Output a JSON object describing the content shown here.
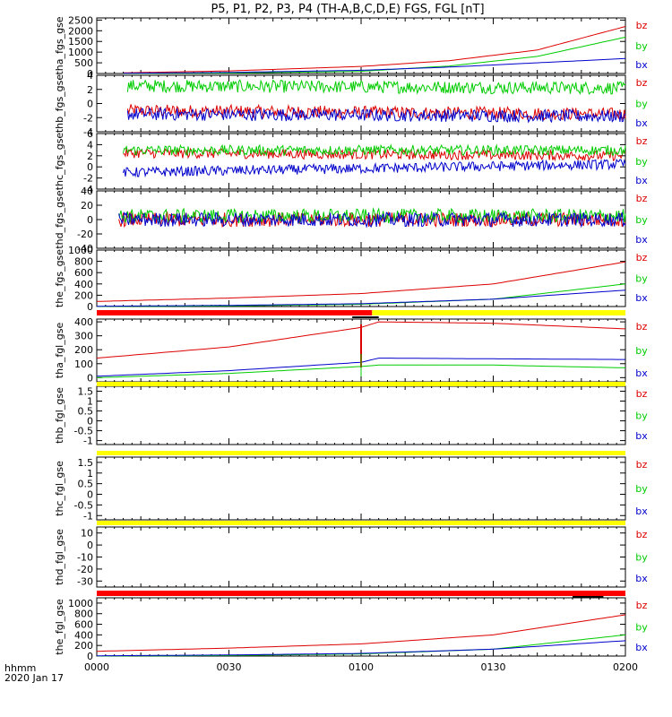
{
  "title": "P5, P1, P2, P3, P4 (TH-A,B,C,D,E) FGS, FGL [nT]",
  "time_axis": {
    "ticks": [
      "0000",
      "0030",
      "0100",
      "0130",
      "0200"
    ],
    "label_line1": "hhmm",
    "label_line2": "2020 Jan 17"
  },
  "colors": {
    "bx": "#0000cc",
    "by": "#00cc00",
    "bz": "#dd0000",
    "red_bar": "#ff0000",
    "yellow_bar": "#ffff00"
  },
  "chart_data": [
    {
      "type": "line",
      "ylabel": "tha_fgs_gse",
      "ylim": [
        0,
        2600
      ],
      "yticks": [
        0,
        500,
        1000,
        1500,
        2000,
        2500
      ],
      "legend": [
        "bz",
        "by",
        "bx"
      ],
      "series": [
        {
          "name": "bz",
          "x": [
            "00:06",
            "00:30",
            "01:00",
            "01:20",
            "01:40",
            "02:00"
          ],
          "values": [
            30,
            120,
            330,
            600,
            1100,
            2200
          ]
        },
        {
          "name": "by",
          "x": [
            "00:06",
            "00:30",
            "01:00",
            "01:20",
            "01:40",
            "02:00"
          ],
          "values": [
            0,
            20,
            100,
            350,
            800,
            1700
          ]
        },
        {
          "name": "bx",
          "x": [
            "00:06",
            "00:30",
            "01:00",
            "01:20",
            "01:40",
            "02:00"
          ],
          "values": [
            10,
            50,
            150,
            300,
            500,
            700
          ]
        }
      ]
    },
    {
      "type": "line",
      "ylabel": "thb_fgs_gse",
      "ylim": [
        -4,
        4
      ],
      "yticks": [
        -4,
        -2,
        0,
        2,
        4
      ],
      "legend": [
        "bz",
        "by",
        "bx"
      ],
      "series": [
        {
          "name": "bz",
          "x": [
            "00:07",
            "02:00"
          ],
          "values": [
            -1,
            -1.5
          ]
        },
        {
          "name": "by",
          "x": [
            "00:07",
            "02:00"
          ],
          "values": [
            2.5,
            2.2
          ]
        },
        {
          "name": "bx",
          "x": [
            "00:07",
            "02:00"
          ],
          "values": [
            -1.5,
            -1.8
          ]
        }
      ]
    },
    {
      "type": "line",
      "ylabel": "thc_fgs_gse",
      "ylim": [
        -4,
        6
      ],
      "yticks": [
        -4,
        -2,
        0,
        2,
        4,
        6
      ],
      "legend": [
        "bz",
        "by",
        "bx"
      ],
      "series": [
        {
          "name": "bz",
          "x": [
            "00:06",
            "02:00"
          ],
          "values": [
            2.5,
            2.0
          ]
        },
        {
          "name": "by",
          "x": [
            "00:06",
            "02:00"
          ],
          "values": [
            3.0,
            3.0
          ]
        },
        {
          "name": "bx",
          "x": [
            "00:06",
            "02:00"
          ],
          "values": [
            -1.0,
            0.5
          ]
        }
      ]
    },
    {
      "type": "line",
      "ylabel": "thd_fgs_gse",
      "ylim": [
        -40,
        40
      ],
      "yticks": [
        -40,
        -20,
        0,
        20,
        40
      ],
      "legend": [
        "bz",
        "by",
        "bx"
      ],
      "series": [
        {
          "name": "bz",
          "x": [
            "00:05",
            "02:00"
          ],
          "values": [
            0,
            0
          ]
        },
        {
          "name": "by",
          "x": [
            "00:05",
            "02:00"
          ],
          "values": [
            5,
            5
          ]
        },
        {
          "name": "bx",
          "x": [
            "00:05",
            "02:00"
          ],
          "values": [
            0,
            0
          ]
        }
      ]
    },
    {
      "type": "line",
      "ylabel": "the_fgs_gse",
      "ylim": [
        0,
        1000
      ],
      "yticks": [
        0,
        200,
        400,
        600,
        800,
        1000
      ],
      "legend": [
        "bz",
        "by",
        "bx"
      ],
      "series": [
        {
          "name": "bz",
          "x": [
            "00:00",
            "00:30",
            "01:00",
            "01:30",
            "02:00"
          ],
          "values": [
            90,
            150,
            230,
            400,
            790
          ]
        },
        {
          "name": "by",
          "x": [
            "00:00",
            "00:30",
            "01:00",
            "01:30",
            "02:00"
          ],
          "values": [
            0,
            10,
            40,
            130,
            400
          ]
        },
        {
          "name": "bx",
          "x": [
            "00:00",
            "00:30",
            "01:00",
            "01:30",
            "02:00"
          ],
          "values": [
            5,
            20,
            50,
            130,
            290
          ]
        }
      ]
    },
    {
      "type": "line",
      "ylabel": "tha_fgl_gse",
      "ylim": [
        -30,
        420
      ],
      "yticks": [
        0,
        100,
        200,
        300,
        400
      ],
      "legend": [
        "bz",
        "by",
        "bx"
      ],
      "series": [
        {
          "name": "bz",
          "x": [
            "00:00",
            "00:30",
            "01:00",
            "01:04",
            "01:30",
            "02:00"
          ],
          "values": [
            140,
            220,
            360,
            400,
            390,
            350
          ]
        },
        {
          "name": "by",
          "x": [
            "00:00",
            "00:30",
            "01:00",
            "01:04",
            "01:30",
            "02:00"
          ],
          "values": [
            0,
            30,
            80,
            90,
            90,
            70
          ]
        },
        {
          "name": "bx",
          "x": [
            "00:00",
            "00:30",
            "01:00",
            "01:04",
            "01:30",
            "02:00"
          ],
          "values": [
            10,
            50,
            110,
            140,
            135,
            130
          ]
        }
      ]
    },
    {
      "type": "line",
      "ylabel": "thb_fgl_gse",
      "ylim": [
        -1.2,
        1.75
      ],
      "yticks": [
        -1.0,
        -0.5,
        0.0,
        0.5,
        1.0,
        1.5
      ],
      "legend": [
        "bz",
        "by",
        "bx"
      ],
      "series": []
    },
    {
      "type": "line",
      "ylabel": "thc_fgl_gse",
      "ylim": [
        -1.2,
        1.75
      ],
      "yticks": [
        -1.0,
        -0.5,
        0.0,
        0.5,
        1.0,
        1.5
      ],
      "legend": [
        "bz",
        "by",
        "bx"
      ],
      "series": []
    },
    {
      "type": "line",
      "ylabel": "thd_fgl_gse",
      "ylim": [
        -35,
        15
      ],
      "yticks": [
        -30,
        -20,
        -10,
        0,
        10
      ],
      "legend": [
        "bz",
        "by",
        "bx"
      ],
      "series": []
    },
    {
      "type": "line",
      "ylabel": "the_fgl_gse",
      "ylim": [
        0,
        1100
      ],
      "yticks": [
        0,
        200,
        400,
        600,
        800,
        1000
      ],
      "legend": [
        "bz",
        "by",
        "bx"
      ],
      "series": [
        {
          "name": "bz",
          "x": [
            "00:00",
            "00:30",
            "01:00",
            "01:30",
            "02:00"
          ],
          "values": [
            90,
            150,
            230,
            400,
            780
          ]
        },
        {
          "name": "by",
          "x": [
            "00:00",
            "00:30",
            "01:00",
            "01:30",
            "02:00"
          ],
          "values": [
            0,
            10,
            40,
            130,
            400
          ]
        },
        {
          "name": "bx",
          "x": [
            "00:00",
            "00:30",
            "01:00",
            "01:30",
            "02:00"
          ],
          "values": [
            5,
            20,
            50,
            130,
            290
          ]
        }
      ]
    }
  ]
}
